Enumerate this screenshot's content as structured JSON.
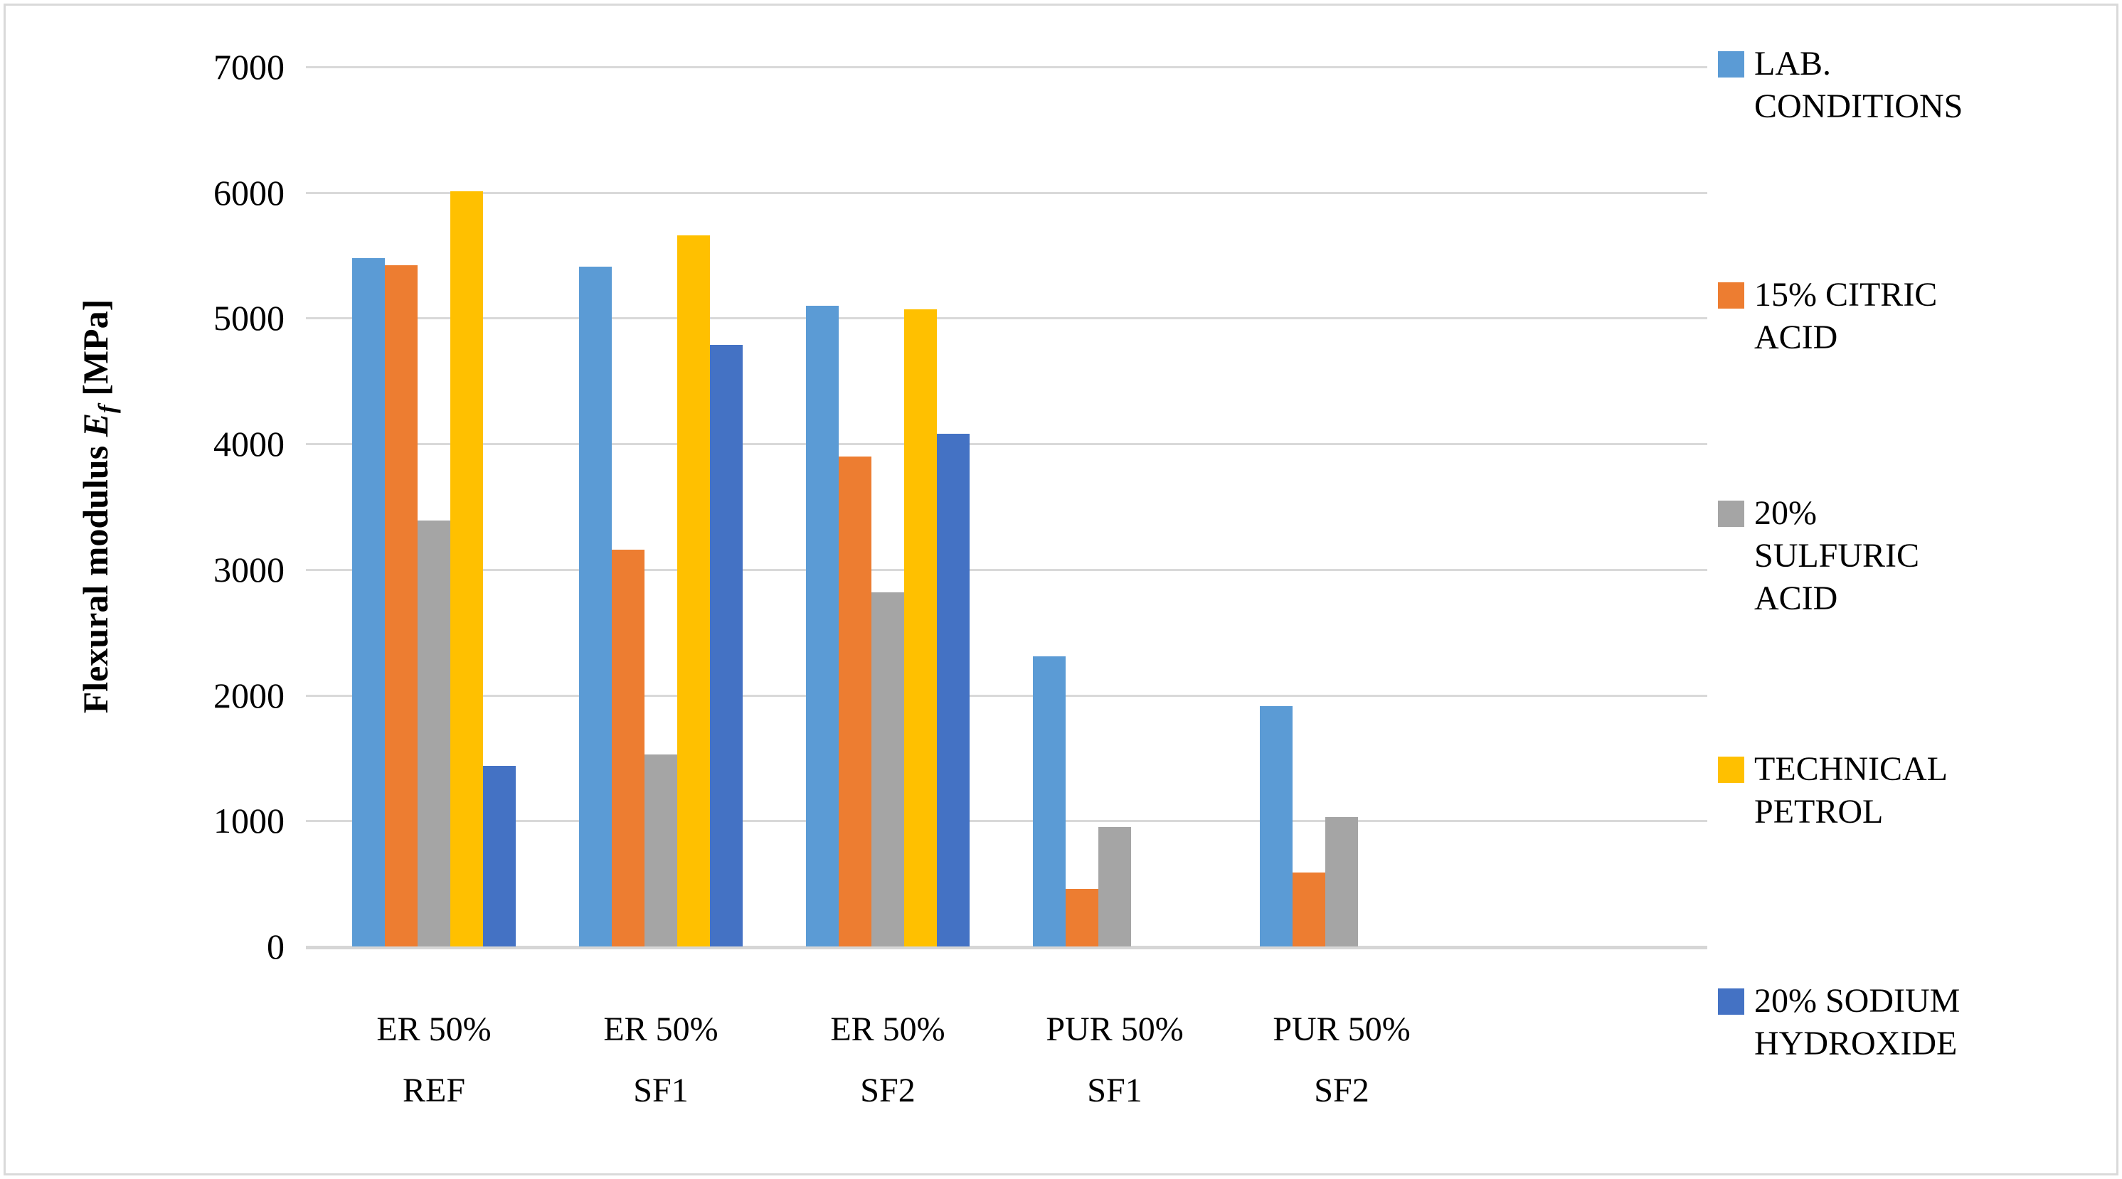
{
  "chart_data": {
    "type": "bar",
    "title": "",
    "ylabel_parts": {
      "prefix": "Flexural modulus ",
      "symbol": "E",
      "subscript": "f",
      "suffix": " [MPa]"
    },
    "ylim": [
      0,
      7000
    ],
    "ytick_step": 1000,
    "yticks": [
      "0",
      "1000",
      "2000",
      "3000",
      "4000",
      "5000",
      "6000",
      "7000"
    ],
    "grid": true,
    "legend_position": "right",
    "categories": [
      "ER 50%\nREF",
      "ER 50%\nSF1",
      "ER 50%\nSF2",
      "PUR 50%\nSF1",
      "PUR 50%\nSF2"
    ],
    "series": [
      {
        "name": "LAB.\nCONDITIONS",
        "color": "#5b9bd5",
        "values": [
          5480,
          5410,
          5100,
          2310,
          1910
        ]
      },
      {
        "name": "15% CITRIC\nACID",
        "color": "#ed7d31",
        "values": [
          5420,
          3160,
          3900,
          460,
          590
        ]
      },
      {
        "name": "20%\nSULFURIC\nACID",
        "color": "#a5a5a5",
        "values": [
          3390,
          1530,
          2820,
          950,
          1030
        ]
      },
      {
        "name": "TECHNICAL\nPETROL",
        "color": "#ffc000",
        "values": [
          6010,
          5660,
          5070,
          0,
          0
        ]
      },
      {
        "name": "20% SODIUM\nHYDROXIDE",
        "color": "#4472c4",
        "values": [
          1440,
          4790,
          4080,
          0,
          0
        ]
      }
    ],
    "gridline_color": "#d9d9d9"
  }
}
